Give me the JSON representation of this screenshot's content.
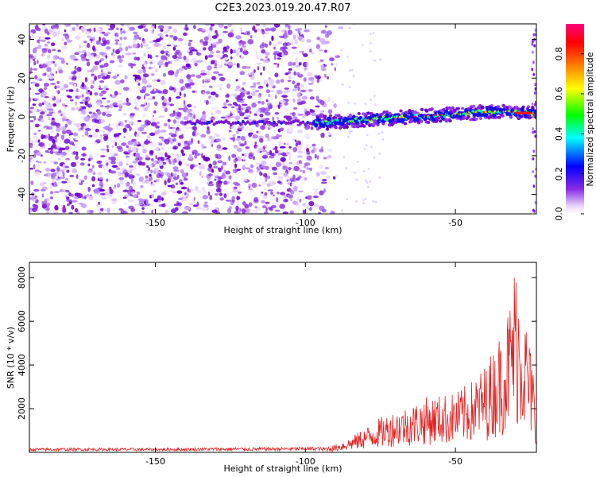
{
  "title": "C2E3.2023.019.20.47.R07",
  "chart_data": [
    {
      "type": "heatmap",
      "xlabel": "Height of straight line (km)",
      "ylabel": "Frequency (Hz)",
      "xlim": [
        -192,
        -23
      ],
      "ylim": [
        -50,
        48
      ],
      "xticks": [
        "-150",
        "-100",
        "-50"
      ],
      "xtick_values": [
        -150,
        -100,
        -50
      ],
      "yticks": [
        "40",
        "20",
        "0",
        "-20",
        "-40"
      ],
      "ytick_values": [
        40,
        20,
        0,
        -20,
        -40
      ],
      "noise_region_x": [
        -192,
        -88
      ],
      "ridge": {
        "x": [
          -95,
          -85,
          -75,
          -65,
          -55,
          -45,
          -35,
          -25
        ],
        "y": [
          -3,
          -2,
          -1,
          0,
          1,
          2,
          3,
          2
        ]
      },
      "colorbar": {
        "label": "Normalized spectral amplitude",
        "range": [
          0,
          0.95
        ],
        "ticks": [
          "0.0",
          "0.2",
          "0.4",
          "0.6",
          "0.8"
        ],
        "tick_values": [
          0,
          0.2,
          0.4,
          0.6,
          0.8
        ],
        "colormap": [
          "#ffffff",
          "#8a2be2",
          "#0000ff",
          "#00ffff",
          "#00ff00",
          "#ffff00",
          "#ff8000",
          "#ff0000",
          "#ff0080"
        ]
      }
    },
    {
      "type": "line",
      "xlabel": "Height of straight line (km)",
      "ylabel": "SNR (10 * v/v)",
      "xlim": [
        -192,
        -23
      ],
      "ylim": [
        0,
        8700
      ],
      "xticks": [
        "-150",
        "-100",
        "-50"
      ],
      "xtick_values": [
        -150,
        -100,
        -50
      ],
      "yticks": [
        "2000",
        "4000",
        "6000",
        "8000"
      ],
      "ytick_values": [
        2000,
        4000,
        6000,
        8000
      ],
      "series": [
        {
          "color": "#e82020",
          "x": [
            -192,
            -170,
            -150,
            -130,
            -110,
            -95,
            -90,
            -85,
            -80,
            -75,
            -70,
            -65,
            -60,
            -55,
            -50,
            -45,
            -40,
            -35,
            -32,
            -30,
            -28,
            -26,
            -24,
            -23
          ],
          "y": [
            150,
            160,
            150,
            170,
            180,
            200,
            300,
            600,
            1000,
            1400,
            1700,
            1900,
            2200,
            2300,
            2400,
            2800,
            3500,
            4800,
            6000,
            7800,
            6500,
            5000,
            3500,
            200
          ]
        }
      ]
    }
  ]
}
